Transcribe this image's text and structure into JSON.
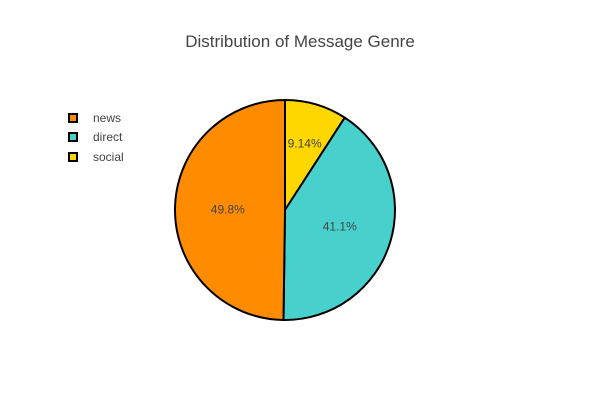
{
  "chart_data": {
    "type": "pie",
    "title": "Distribution of Message Genre",
    "categories": [
      "news",
      "direct",
      "social"
    ],
    "values": [
      49.8,
      41.1,
      9.14
    ],
    "labels": [
      "49.8%",
      "41.1%",
      "9.14%"
    ],
    "colors": [
      "#ff8c00",
      "#48d1cc",
      "#ffd700"
    ],
    "order_drawn_clockwise": [
      "social",
      "direct",
      "news"
    ],
    "legend_position": "top-left",
    "slice_border_color": "#000000"
  }
}
